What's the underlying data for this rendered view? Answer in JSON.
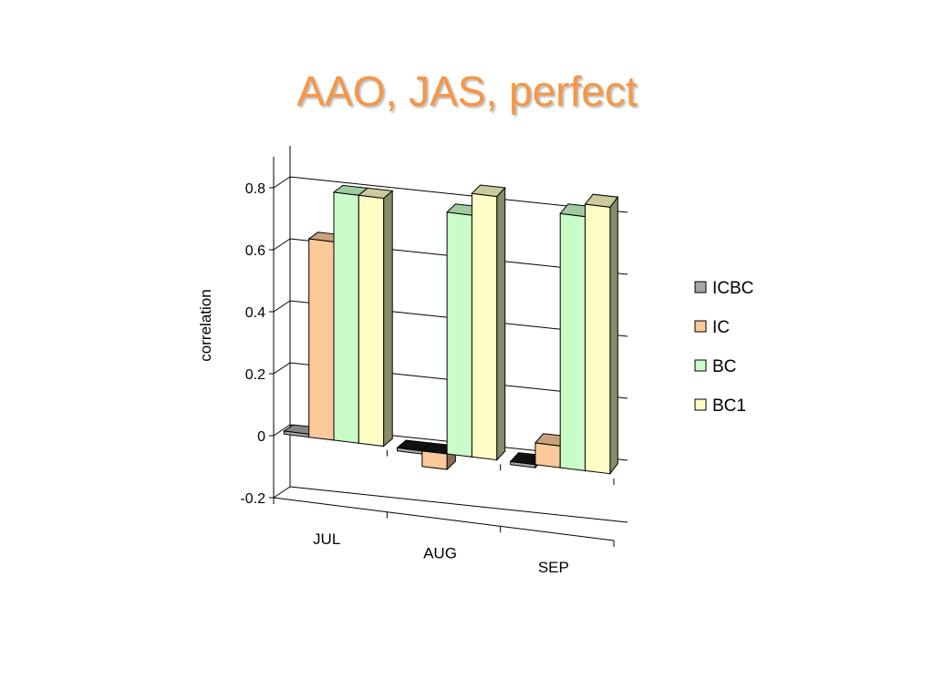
{
  "slide": {
    "title": "AAO, JAS, perfect"
  },
  "chart_data": {
    "type": "bar",
    "style": "3d-clustered-column",
    "categories": [
      "JUL",
      "AUG",
      "SEP"
    ],
    "series": [
      {
        "name": "ICBC",
        "values": [
          0.01,
          -0.01,
          -0.01
        ],
        "color": "#a6a6a6"
      },
      {
        "name": "IC",
        "values": [
          0.64,
          -0.05,
          0.07
        ],
        "color": "#fcc99a"
      },
      {
        "name": "BC",
        "values": [
          0.8,
          0.78,
          0.82
        ],
        "color": "#c9fcc9"
      },
      {
        "name": "BC1",
        "values": [
          0.8,
          0.85,
          0.86
        ],
        "color": "#fcfcc4"
      }
    ],
    "ylabel": "correlation",
    "xlabel": "",
    "ylim": [
      -0.2,
      0.8
    ],
    "yticks": [
      -0.2,
      0,
      0.2,
      0.4,
      0.6,
      0.8
    ],
    "ytick_labels": [
      "-0.2",
      "0",
      "0.2",
      "0.4",
      "0.6",
      "0.8"
    ],
    "grid": true,
    "legend": "right"
  }
}
